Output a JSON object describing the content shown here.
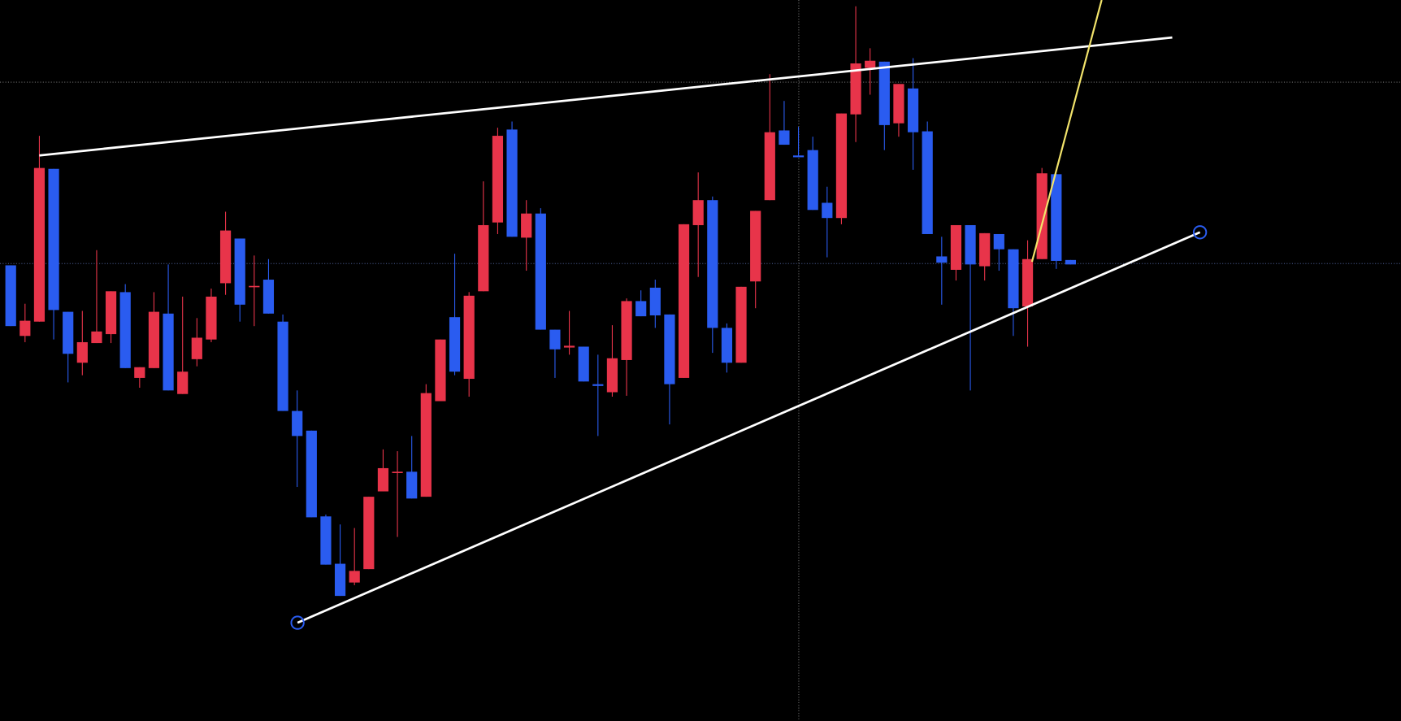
{
  "chart_data": {
    "type": "candlestick",
    "ylim": [
      0,
      807
    ],
    "colors": {
      "up": "#e8344a",
      "down": "#2a5cf0"
    },
    "open": [
      510,
      431,
      447,
      618,
      458,
      401,
      423,
      433,
      480,
      384,
      395,
      456,
      366,
      405,
      427,
      490,
      540,
      486,
      494,
      447,
      347,
      325,
      229,
      176,
      155,
      170,
      257,
      278,
      279,
      251,
      358,
      452,
      383,
      481,
      558,
      662,
      541,
      568,
      438,
      418,
      419,
      377,
      368,
      404,
      470,
      485,
      455,
      384,
      555,
      583,
      440,
      401,
      492,
      583,
      661,
      633,
      639,
      580,
      563,
      679,
      731,
      738,
      669,
      708,
      660,
      520,
      505,
      555,
      509,
      545,
      528,
      464,
      517,
      612,
      516
    ],
    "high": [
      510,
      467,
      655,
      618,
      458,
      459,
      527,
      481,
      489,
      396,
      480,
      511,
      475,
      451,
      484,
      570,
      540,
      521,
      517,
      455,
      370,
      325,
      231,
      220,
      216,
      251,
      304,
      302,
      319,
      377,
      427,
      523,
      480,
      604,
      664,
      671,
      583,
      574,
      438,
      459,
      419,
      410,
      443,
      473,
      482,
      494,
      455,
      556,
      614,
      587,
      445,
      486,
      571,
      724,
      694,
      665,
      654,
      598,
      680,
      800,
      753,
      738,
      713,
      742,
      671,
      542,
      555,
      555,
      546,
      545,
      528,
      538,
      619,
      612,
      516
    ],
    "low": [
      442,
      424,
      447,
      427,
      379,
      387,
      423,
      423,
      395,
      373,
      395,
      370,
      366,
      397,
      424,
      477,
      447,
      442,
      456,
      347,
      262,
      228,
      175,
      140,
      152,
      170,
      257,
      206,
      249,
      251,
      358,
      387,
      363,
      481,
      545,
      542,
      504,
      438,
      384,
      410,
      380,
      319,
      363,
      364,
      453,
      440,
      332,
      384,
      497,
      412,
      390,
      401,
      462,
      583,
      645,
      631,
      572,
      519,
      556,
      648,
      701,
      639,
      654,
      617,
      545,
      466,
      493,
      370,
      493,
      504,
      431,
      419,
      517,
      506,
      511
    ],
    "close": [
      442,
      448,
      619,
      460,
      411,
      424,
      436,
      481,
      395,
      396,
      458,
      370,
      391,
      429,
      475,
      549,
      466,
      487,
      456,
      347,
      319,
      228,
      175,
      140,
      168,
      251,
      283,
      279,
      249,
      367,
      427,
      391,
      476,
      555,
      655,
      542,
      568,
      438,
      416,
      420,
      380,
      375,
      406,
      470,
      453,
      454,
      377,
      556,
      583,
      440,
      401,
      486,
      571,
      659,
      645,
      631,
      572,
      563,
      680,
      736,
      739,
      667,
      713,
      659,
      545,
      513,
      555,
      511,
      546,
      528,
      462,
      517,
      613,
      515,
      511
    ]
  }
}
